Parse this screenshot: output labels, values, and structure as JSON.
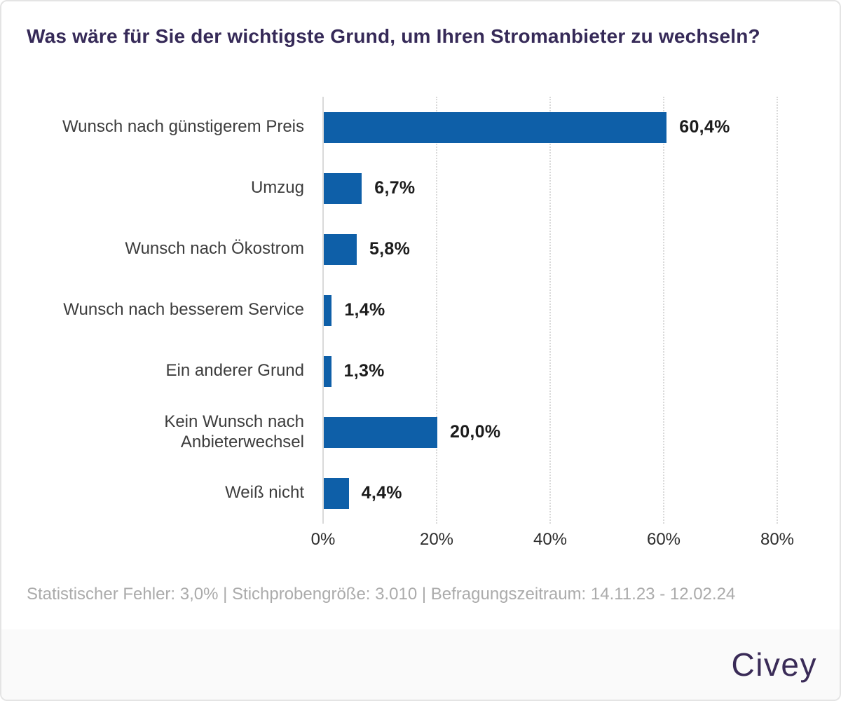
{
  "chart_data": {
    "type": "bar",
    "orientation": "horizontal",
    "title": "Was wäre für Sie der wichtigste Grund, um Ihren Stromanbieter zu wechseln?",
    "categories": [
      "Wunsch nach günstigerem Preis",
      "Umzug",
      "Wunsch nach Ökostrom",
      "Wunsch nach besserem Service",
      "Ein anderer Grund",
      "Kein Wunsch nach Anbieterwechsel",
      "Weiß nicht"
    ],
    "display_labels": [
      "Wunsch nach günstigerem Preis",
      "Umzug",
      "Wunsch nach Ökostrom",
      "Wunsch nach besserem Service",
      "Ein anderer Grund",
      "Kein Wunsch nach\nAnbieterwechsel",
      "Weiß nicht"
    ],
    "values": [
      60.4,
      6.7,
      5.8,
      1.4,
      1.3,
      20.0,
      4.4
    ],
    "value_labels": [
      "60,4%",
      "6,7%",
      "5,8%",
      "1,4%",
      "1,3%",
      "20,0%",
      "4,4%"
    ],
    "xlabel": "",
    "ylabel": "",
    "xlim": [
      0,
      80
    ],
    "x_ticks": [
      0,
      20,
      40,
      60,
      80
    ],
    "x_tick_labels": [
      "0%",
      "20%",
      "40%",
      "60%",
      "80%"
    ],
    "grid": "vertical dotted gridlines every 20%, solid baseline at 0%",
    "legend": "none"
  },
  "footer": {
    "stats_line": "Statistischer Fehler: 3,0% | Stichprobengröße: 3.010 | Befragungszeitraum: 14.11.23 - 12.02.24",
    "statistical_error": "3,0%",
    "sample_size": "3.010",
    "survey_period": "14.11.23 - 12.02.24",
    "brand": "Civey"
  },
  "colors": {
    "bar": "#0e5fa8",
    "title": "#362a58",
    "brand": "#3a2b57",
    "category_label": "#3d3d3d",
    "value_label": "#1c1c1c",
    "gridline": "#d9d9d9",
    "axis_tick_label": "#2d2d2d",
    "stats_text": "#ababab",
    "footer_background": "#fafafa",
    "card_background": "#ffffff"
  }
}
